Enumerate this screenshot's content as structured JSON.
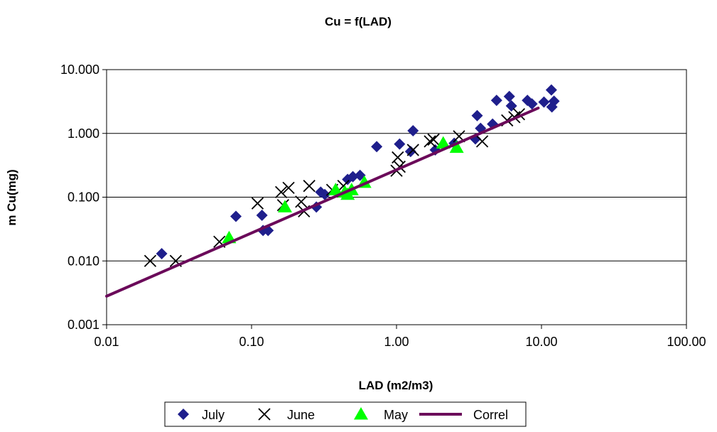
{
  "chart_data": {
    "type": "scatter",
    "title": "Cu = f(LAD)",
    "xlabel": "LAD (m2/m3)",
    "ylabel": "m Cu(mg)",
    "xscale": "log",
    "yscale": "log",
    "xlim": [
      0.01,
      100
    ],
    "ylim": [
      0.001,
      10
    ],
    "x_ticks": [
      0.01,
      0.1,
      1,
      10,
      100
    ],
    "x_tick_labels": [
      "0.01",
      "0.10",
      "1.00",
      "10.00",
      "100.00"
    ],
    "y_ticks": [
      0.001,
      0.01,
      0.1,
      1,
      10
    ],
    "y_tick_labels": [
      "0.001",
      "0.010",
      "0.100",
      "1.000",
      "10.000"
    ],
    "grid": "horizontal major",
    "legend_position": "bottom",
    "series": [
      {
        "name": "July",
        "marker": "diamond",
        "color": "#1f1f8c",
        "points": [
          [
            0.024,
            0.013
          ],
          [
            0.078,
            0.05
          ],
          [
            0.118,
            0.052
          ],
          [
            0.12,
            0.03
          ],
          [
            0.13,
            0.03
          ],
          [
            0.28,
            0.07
          ],
          [
            0.3,
            0.12
          ],
          [
            0.32,
            0.11
          ],
          [
            0.46,
            0.19
          ],
          [
            0.5,
            0.21
          ],
          [
            0.56,
            0.22
          ],
          [
            0.73,
            0.62
          ],
          [
            1.05,
            0.68
          ],
          [
            1.25,
            0.52
          ],
          [
            1.3,
            1.1
          ],
          [
            1.85,
            0.55
          ],
          [
            2.5,
            0.7
          ],
          [
            3.5,
            0.82
          ],
          [
            3.6,
            1.9
          ],
          [
            3.8,
            1.2
          ],
          [
            4.6,
            1.4
          ],
          [
            4.9,
            3.3
          ],
          [
            6.0,
            3.8
          ],
          [
            6.2,
            2.7
          ],
          [
            8.0,
            3.3
          ],
          [
            8.6,
            2.9
          ],
          [
            10.4,
            3.1
          ],
          [
            11.7,
            4.8
          ],
          [
            11.8,
            2.6
          ],
          [
            12.2,
            3.2
          ]
        ]
      },
      {
        "name": "June",
        "marker": "x",
        "color": "#000000",
        "points": [
          [
            0.02,
            0.01
          ],
          [
            0.03,
            0.01
          ],
          [
            0.06,
            0.02
          ],
          [
            0.11,
            0.08
          ],
          [
            0.16,
            0.12
          ],
          [
            0.165,
            0.075
          ],
          [
            0.18,
            0.14
          ],
          [
            0.22,
            0.085
          ],
          [
            0.23,
            0.06
          ],
          [
            0.25,
            0.15
          ],
          [
            0.36,
            0.13
          ],
          [
            0.43,
            0.15
          ],
          [
            1.0,
            0.26
          ],
          [
            1.02,
            0.42
          ],
          [
            1.05,
            0.3
          ],
          [
            1.3,
            0.55
          ],
          [
            1.7,
            0.75
          ],
          [
            1.8,
            0.8
          ],
          [
            2.7,
            0.9
          ],
          [
            3.9,
            0.75
          ],
          [
            5.8,
            1.6
          ],
          [
            6.5,
            1.8
          ],
          [
            7.0,
            2.0
          ]
        ]
      },
      {
        "name": "May",
        "marker": "triangle",
        "color": "#00ff00",
        "points": [
          [
            0.07,
            0.023
          ],
          [
            0.17,
            0.07
          ],
          [
            0.38,
            0.13
          ],
          [
            0.44,
            0.12
          ],
          [
            0.46,
            0.11
          ],
          [
            0.49,
            0.13
          ],
          [
            0.6,
            0.17
          ],
          [
            2.1,
            0.7
          ],
          [
            2.6,
            0.6
          ]
        ]
      },
      {
        "name": "Correl",
        "marker": "line",
        "color": "#6b0a5a",
        "points": [
          [
            0.01,
            0.0028
          ],
          [
            9.5,
            2.5
          ]
        ]
      }
    ]
  }
}
